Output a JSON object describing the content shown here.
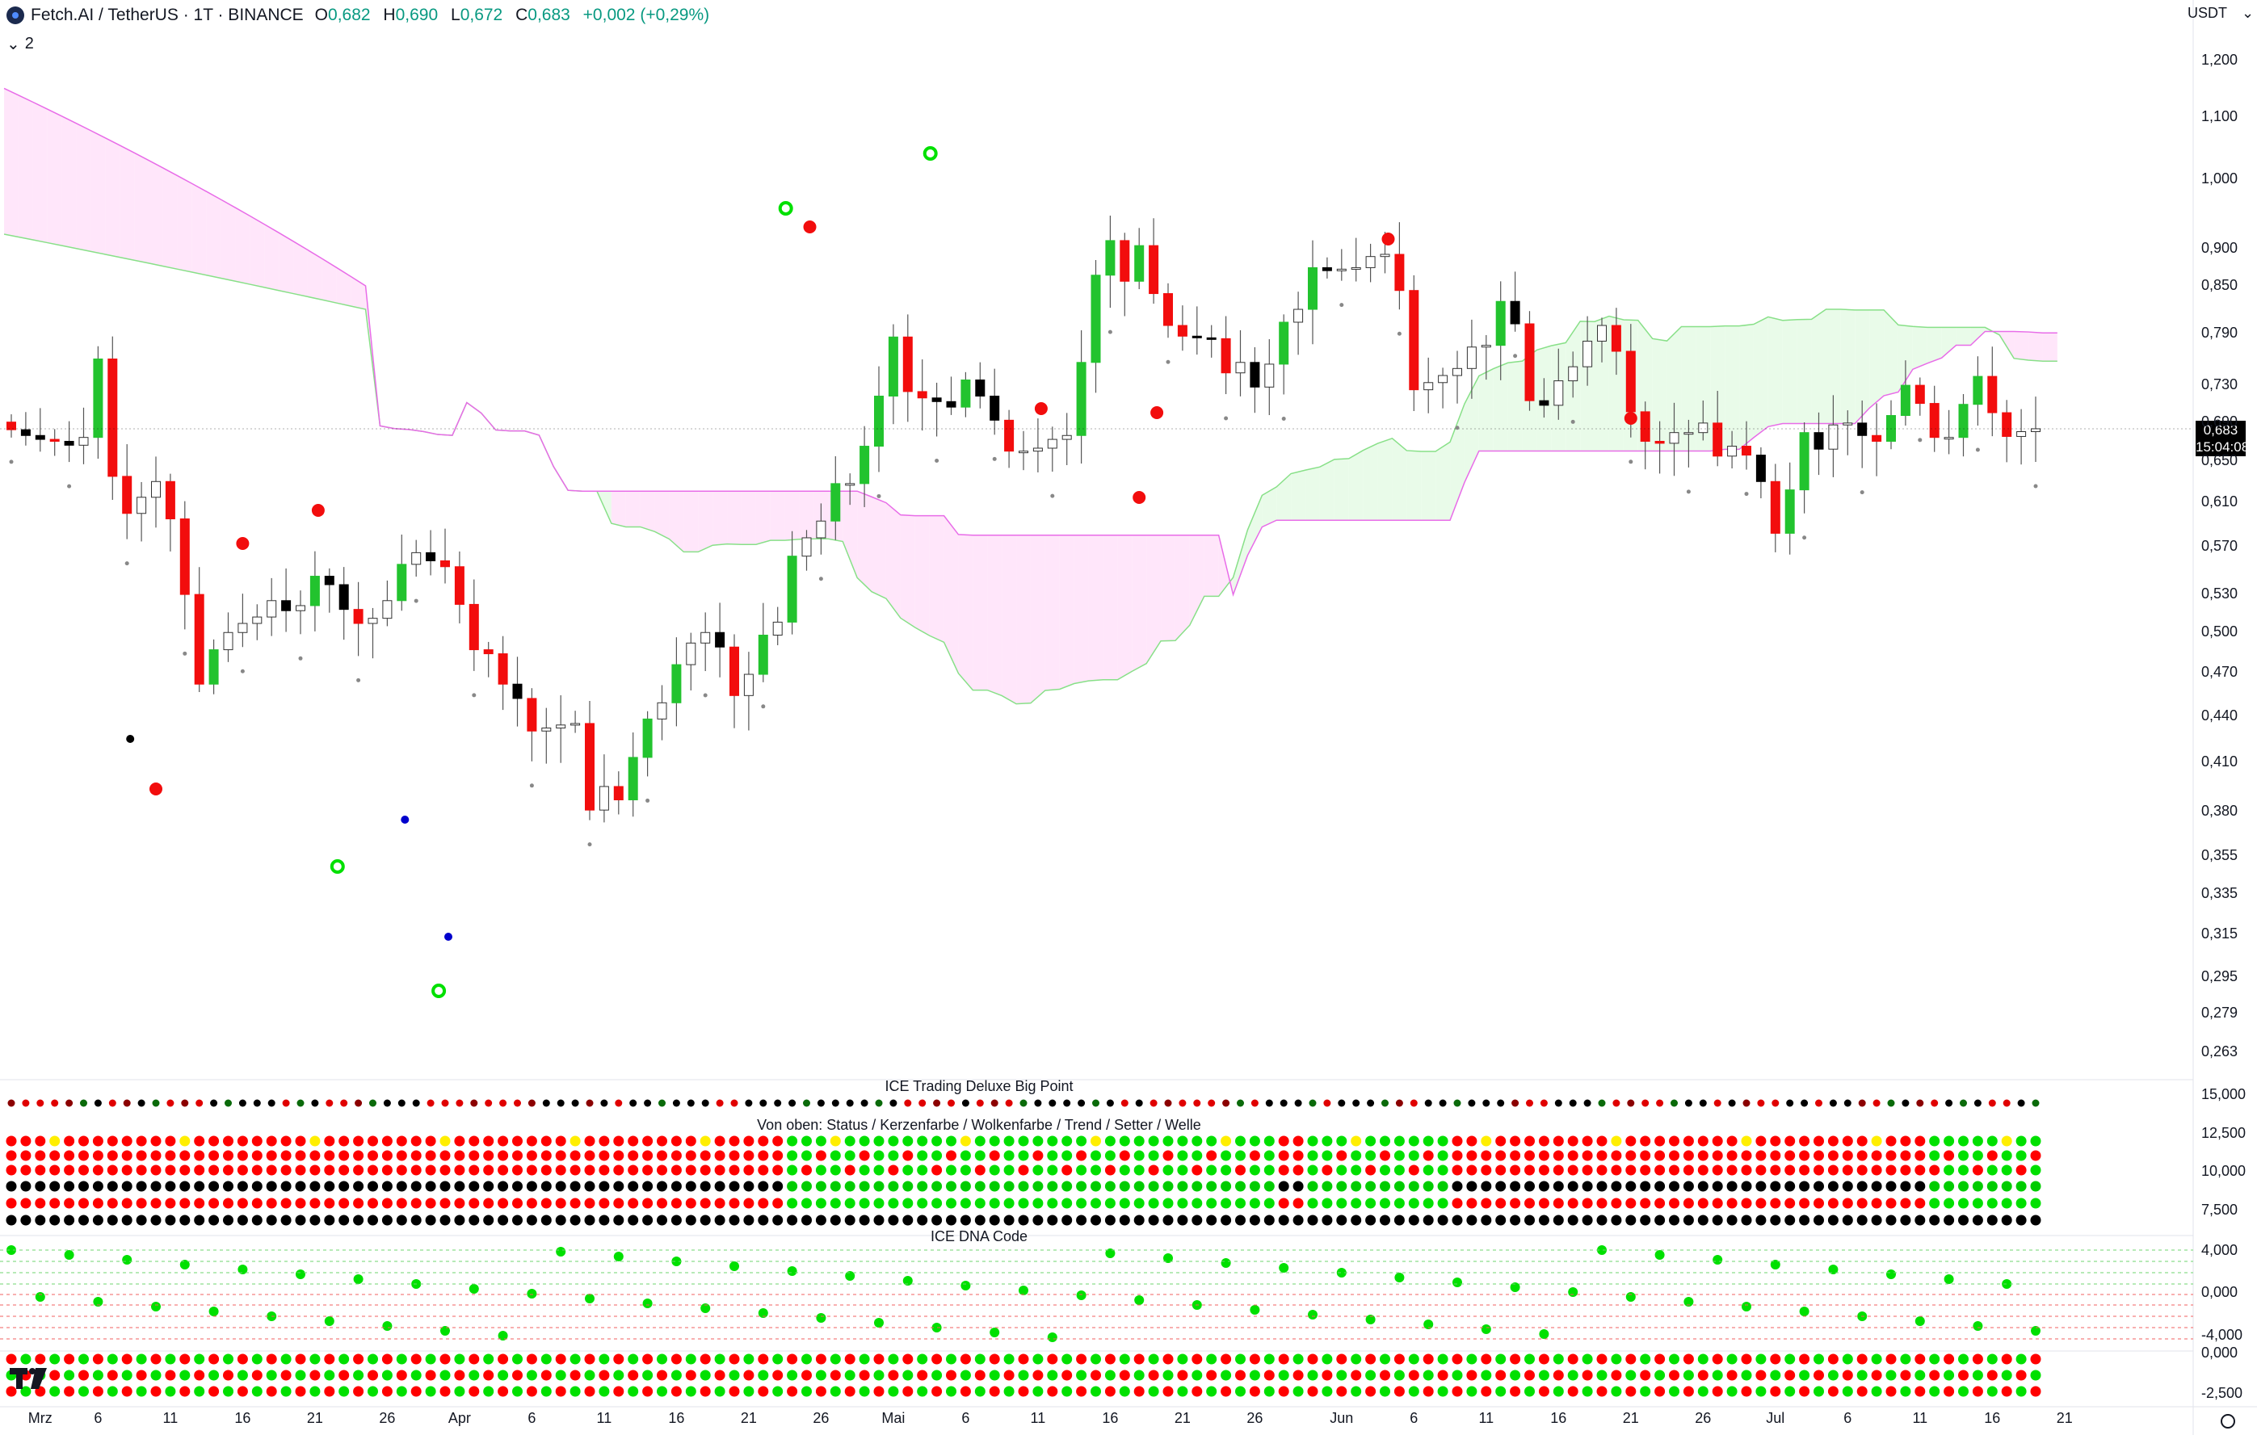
{
  "header": {
    "symbol": "Fetch.AI / TetherUS · 1T · BINANCE",
    "o_label": "O",
    "o": "0,682",
    "h_label": "H",
    "h": "0,690",
    "l_label": "L",
    "l": "0,672",
    "c_label": "C",
    "c": "0,683",
    "change": "+0,002 (+0,29%)",
    "collapse_count": "2",
    "currency": "USDT"
  },
  "price_tag": {
    "price": "0,683",
    "countdown": "15:04:08"
  },
  "panes": {
    "big_point": "ICE Trading Deluxe Big Point",
    "status": "Von oben: Status / Kerzenfarbe / Wolkenfarbe / Trend / Setter / Welle",
    "dna": "ICE DNA Code"
  },
  "colors": {
    "up": "#22c32e",
    "down": "#f20d0d",
    "black": "#000000",
    "cloud_bear": "#ffe6fa",
    "cloud_bull": "#e9fbe9",
    "yellow": "#ffee00"
  },
  "chart_data": {
    "type": "candlestick",
    "y_scale": "log",
    "price_ticks": [
      "1,200",
      "1,100",
      "1,000",
      "0,900",
      "0,850",
      "0,790",
      "0,730",
      "0,690",
      "0,650",
      "0,610",
      "0,570",
      "0,530",
      "0,500",
      "0,470",
      "0,440",
      "0,410",
      "0,380",
      "0,355",
      "0,335",
      "0,315",
      "0,295",
      "0,279",
      "0,263"
    ],
    "osc_ticks_1": [
      "15,000",
      "12,500",
      "10,000",
      "7,500"
    ],
    "osc_ticks_2": [
      "4,000",
      "0,000",
      "-4,000"
    ],
    "osc_ticks_3": [
      "0,000",
      "-2,500"
    ],
    "x_ticks": [
      {
        "t": "Mrz",
        "d": 2
      },
      {
        "t": "6",
        "d": 6
      },
      {
        "t": "11",
        "d": 11
      },
      {
        "t": "16",
        "d": 16
      },
      {
        "t": "21",
        "d": 21
      },
      {
        "t": "26",
        "d": 26
      },
      {
        "t": "Apr",
        "d": 31
      },
      {
        "t": "6",
        "d": 36
      },
      {
        "t": "11",
        "d": 41
      },
      {
        "t": "16",
        "d": 46
      },
      {
        "t": "21",
        "d": 51
      },
      {
        "t": "26",
        "d": 56
      },
      {
        "t": "Mai",
        "d": 61
      },
      {
        "t": "6",
        "d": 66
      },
      {
        "t": "11",
        "d": 71
      },
      {
        "t": "16",
        "d": 76
      },
      {
        "t": "21",
        "d": 81
      },
      {
        "t": "26",
        "d": 86
      },
      {
        "t": "Jun",
        "d": 92
      },
      {
        "t": "6",
        "d": 97
      },
      {
        "t": "11",
        "d": 102
      },
      {
        "t": "16",
        "d": 107
      },
      {
        "t": "21",
        "d": 112
      },
      {
        "t": "26",
        "d": 117
      },
      {
        "t": "Jul",
        "d": 122
      },
      {
        "t": "6",
        "d": 127
      },
      {
        "t": "11",
        "d": 132
      },
      {
        "t": "16",
        "d": 137
      },
      {
        "t": "21",
        "d": 142
      }
    ],
    "close": [
      0.682,
      0.676,
      0.672,
      0.67,
      0.666,
      0.674,
      0.76,
      0.635,
      0.6,
      0.615,
      0.63,
      0.595,
      0.53,
      0.462,
      0.487,
      0.5,
      0.507,
      0.512,
      0.525,
      0.517,
      0.521,
      0.545,
      0.538,
      0.518,
      0.507,
      0.511,
      0.525,
      0.555,
      0.565,
      0.558,
      0.553,
      0.522,
      0.487,
      0.484,
      0.462,
      0.452,
      0.43,
      0.432,
      0.434,
      0.435,
      0.381,
      0.395,
      0.387,
      0.413,
      0.438,
      0.449,
      0.476,
      0.492,
      0.5,
      0.489,
      0.454,
      0.469,
      0.498,
      0.508,
      0.562,
      0.578,
      0.593,
      0.628,
      0.628,
      0.665,
      0.718,
      0.786,
      0.723,
      0.716,
      0.712,
      0.706,
      0.736,
      0.718,
      0.692,
      0.66,
      0.66,
      0.663,
      0.672,
      0.676,
      0.756,
      0.864,
      0.911,
      0.856,
      0.904,
      0.84,
      0.8,
      0.787,
      0.785,
      0.784,
      0.744,
      0.756,
      0.728,
      0.754,
      0.804,
      0.82,
      0.874,
      0.87,
      0.872,
      0.874,
      0.889,
      0.892,
      0.844,
      0.725,
      0.733,
      0.741,
      0.749,
      0.774,
      0.776,
      0.83,
      0.802,
      0.713,
      0.708,
      0.735,
      0.751,
      0.781,
      0.8,
      0.769,
      0.701,
      0.67,
      0.668,
      0.679,
      0.679,
      0.689,
      0.655,
      0.665,
      0.656,
      0.63,
      0.582,
      0.622,
      0.679,
      0.662,
      0.687,
      0.689,
      0.676,
      0.67,
      0.697,
      0.73,
      0.71,
      0.674,
      0.674,
      0.709,
      0.74,
      0.7,
      0.675,
      0.68,
      0.683
    ],
    "series_note": "daily OHLC candles, Ichimoku cloud, Kijun line"
  }
}
